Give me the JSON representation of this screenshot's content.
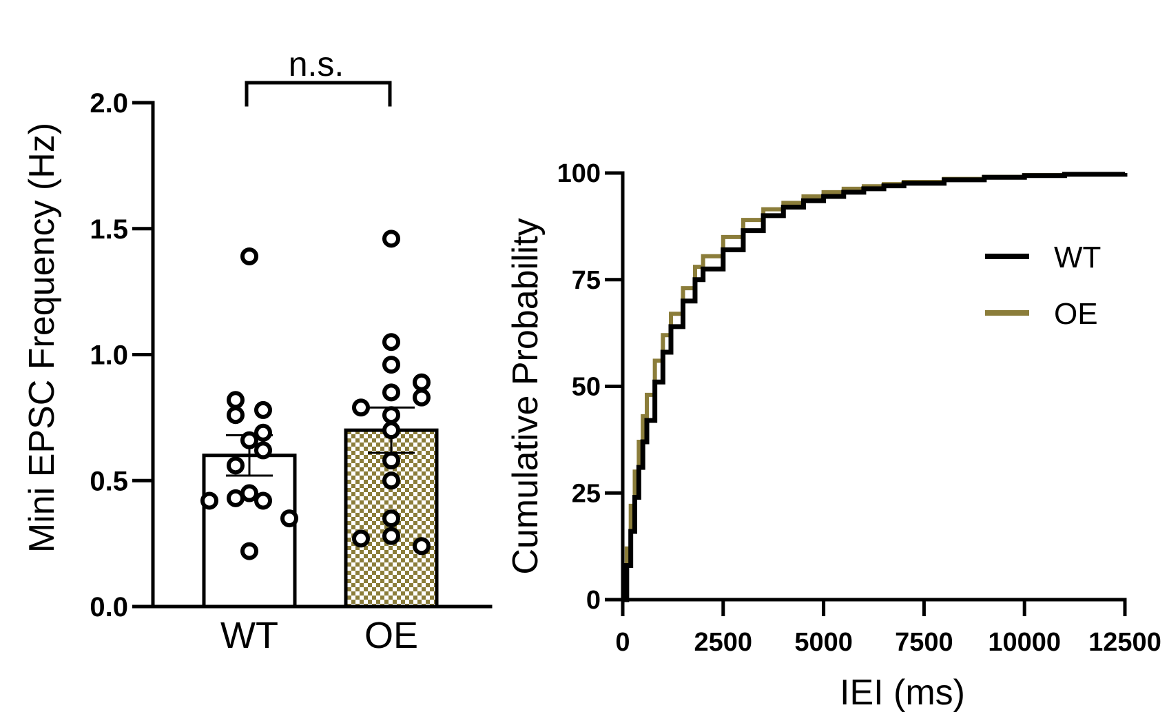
{
  "chart_data": [
    {
      "type": "bar",
      "title": "",
      "xlabel": "",
      "ylabel": "Mini EPSC Frequency (Hz)",
      "ylim": [
        0,
        2.0
      ],
      "yticks": [
        "0.0",
        "0.5",
        "1.0",
        "1.5",
        "2.0"
      ],
      "categories": [
        "WT",
        "OE"
      ],
      "values": [
        0.6,
        0.7
      ],
      "errors": [
        0.08,
        0.09
      ],
      "colors": [
        "#ffffff",
        "#8b7d3a"
      ],
      "points": [
        [
          1.39,
          0.82,
          0.78,
          0.76,
          0.69,
          0.66,
          0.62,
          0.56,
          0.45,
          0.43,
          0.42,
          0.42,
          0.35,
          0.22
        ],
        [
          1.46,
          1.05,
          0.96,
          0.89,
          0.85,
          0.83,
          0.79,
          0.76,
          0.7,
          0.58,
          0.5,
          0.35,
          0.28,
          0.27,
          0.24
        ]
      ],
      "significance": "n.s."
    },
    {
      "type": "line",
      "title": "",
      "xlabel": "IEI (ms)",
      "ylabel": "Cumulative Probability",
      "xlim": [
        0,
        12500
      ],
      "ylim": [
        0,
        100
      ],
      "xticks": [
        "0",
        "2500",
        "5000",
        "7500",
        "10000",
        "12500"
      ],
      "yticks": [
        "0",
        "25",
        "50",
        "75",
        "100"
      ],
      "series": [
        {
          "name": "WT",
          "color": "#000000",
          "x": [
            0,
            100,
            200,
            300,
            400,
            500,
            600,
            800,
            1000,
            1200,
            1500,
            1800,
            2000,
            2500,
            3000,
            3500,
            4000,
            4500,
            5000,
            5500,
            6000,
            6500,
            7000,
            8000,
            9000,
            10000,
            11000,
            12500
          ],
          "y": [
            0,
            8,
            16,
            24,
            31,
            37,
            42,
            51,
            58,
            64,
            70,
            75,
            77.5,
            82,
            86.5,
            90,
            92,
            93.5,
            94.5,
            95.5,
            96.3,
            97,
            97.6,
            98.4,
            99,
            99.4,
            99.7,
            100
          ]
        },
        {
          "name": "OE",
          "color": "#8b7d3a",
          "x": [
            0,
            100,
            200,
            300,
            400,
            500,
            600,
            800,
            1000,
            1200,
            1500,
            1800,
            2000,
            2500,
            3000,
            3500,
            4000,
            4500,
            5000,
            5500,
            6000,
            6500,
            7000,
            8000,
            9000,
            10000,
            11000,
            12500
          ],
          "y": [
            0,
            12,
            22,
            30,
            37,
            43,
            48,
            56,
            62,
            67,
            73,
            78,
            80.5,
            85,
            89,
            91.5,
            93,
            94.5,
            95.5,
            96.3,
            96.9,
            97.4,
            97.9,
            98.6,
            99.1,
            99.5,
            99.7,
            100
          ]
        }
      ],
      "legend": [
        "WT",
        "OE"
      ],
      "legend_position": "right"
    }
  ]
}
